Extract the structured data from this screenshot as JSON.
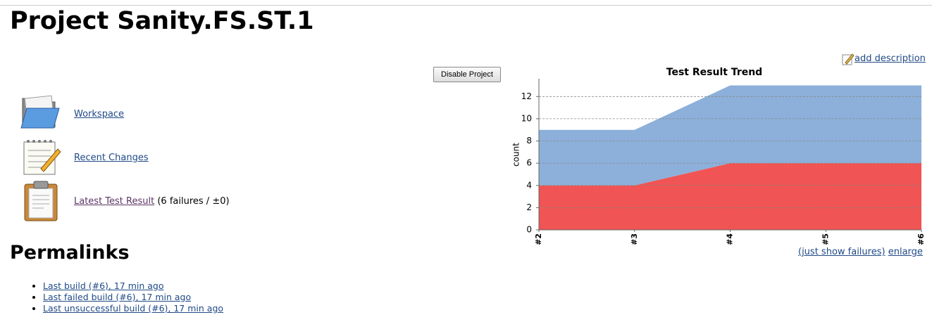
{
  "page": {
    "title": "Project Sanity.FS.ST.1",
    "add_description": "add description",
    "disable_button": "Disable Project",
    "links": [
      {
        "label": "Workspace"
      },
      {
        "label": "Recent Changes"
      },
      {
        "label": "Latest Test Result",
        "note": "(6 failures / ±0)"
      }
    ],
    "permalinks": {
      "heading": "Permalinks",
      "items": [
        "Last build (#6), 17 min ago",
        "Last failed build (#6), 17 min ago",
        "Last unsuccessful build (#6), 17 min ago"
      ]
    },
    "chart_links": [
      "(just show failures)",
      "enlarge"
    ]
  },
  "chart_data": {
    "type": "area",
    "stacked": true,
    "title": "Test Result Trend",
    "ylabel": "count",
    "categories": [
      "#2",
      "#3",
      "#4",
      "#5",
      "#6"
    ],
    "series": [
      {
        "color": "#f05454",
        "values": [
          4,
          4,
          6,
          6,
          6
        ]
      },
      {
        "color": "#8cb0da",
        "values": [
          5,
          5,
          7,
          7,
          7
        ]
      }
    ],
    "ylim": [
      0,
      13.6
    ],
    "yticks": [
      0,
      2,
      4,
      6,
      8,
      10,
      12
    ],
    "grid": true
  }
}
